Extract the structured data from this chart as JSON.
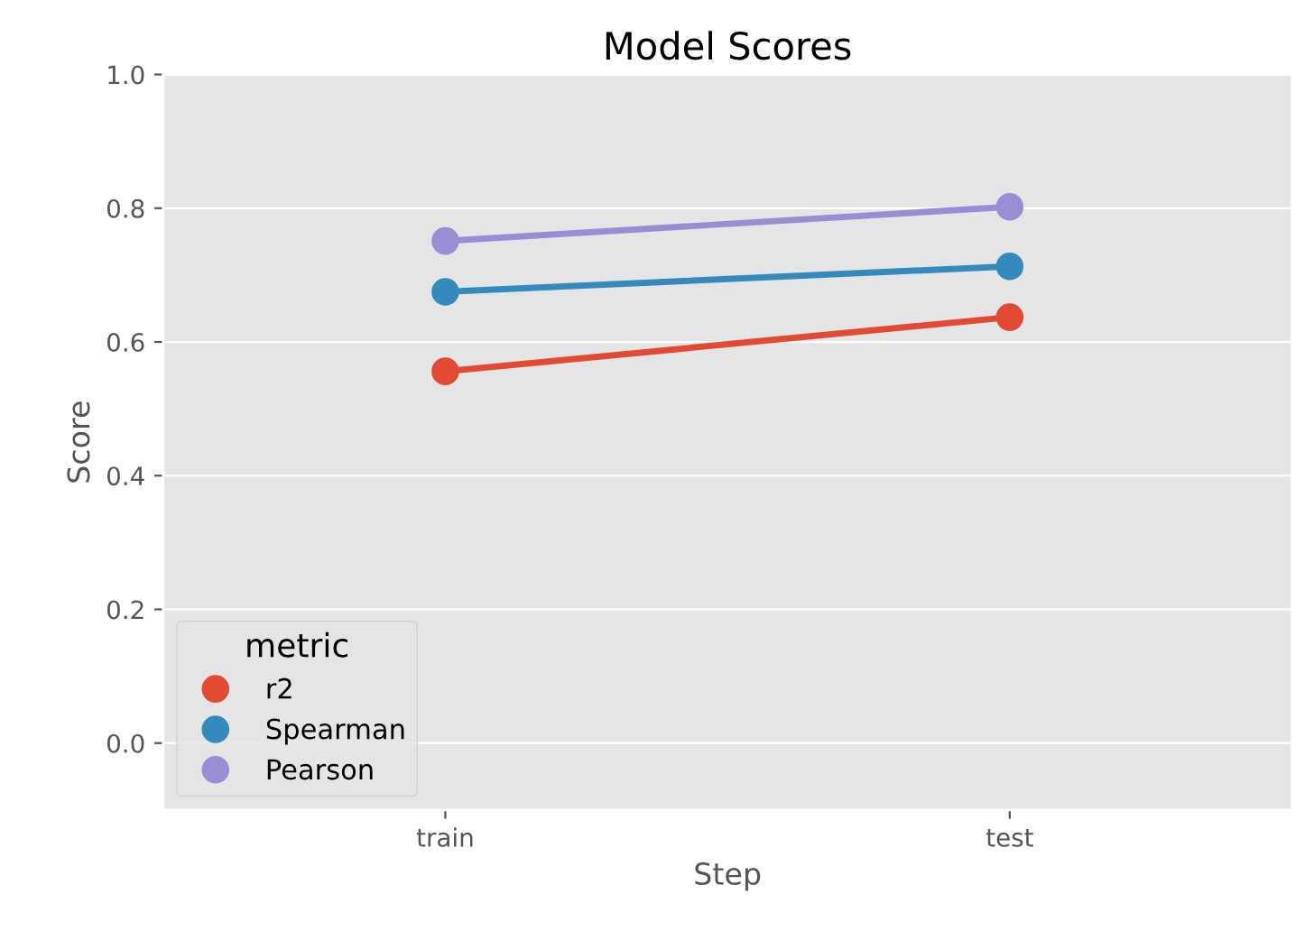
{
  "chart_data": {
    "type": "line",
    "title": "Model Scores",
    "xlabel": "Step",
    "ylabel": "Score",
    "categories": [
      "train",
      "test"
    ],
    "series": [
      {
        "name": "r2",
        "color": "#e24a33",
        "values": [
          0.556,
          0.637
        ]
      },
      {
        "name": "Spearman",
        "color": "#348abd",
        "values": [
          0.675,
          0.713
        ]
      },
      {
        "name": "Pearson",
        "color": "#988ed5",
        "values": [
          0.751,
          0.802
        ]
      }
    ],
    "ylim": [
      -0.1,
      1.0
    ],
    "yticks": [
      {
        "value": 0.0,
        "label": "0.0"
      },
      0.2,
      0.4,
      0.6,
      0.8,
      {
        "value": 1.0,
        "label": "1.0"
      }
    ],
    "grid": "y",
    "legend": "bottom left",
    "legend_title": "metric",
    "marker": "circle",
    "line_style": "solid"
  }
}
